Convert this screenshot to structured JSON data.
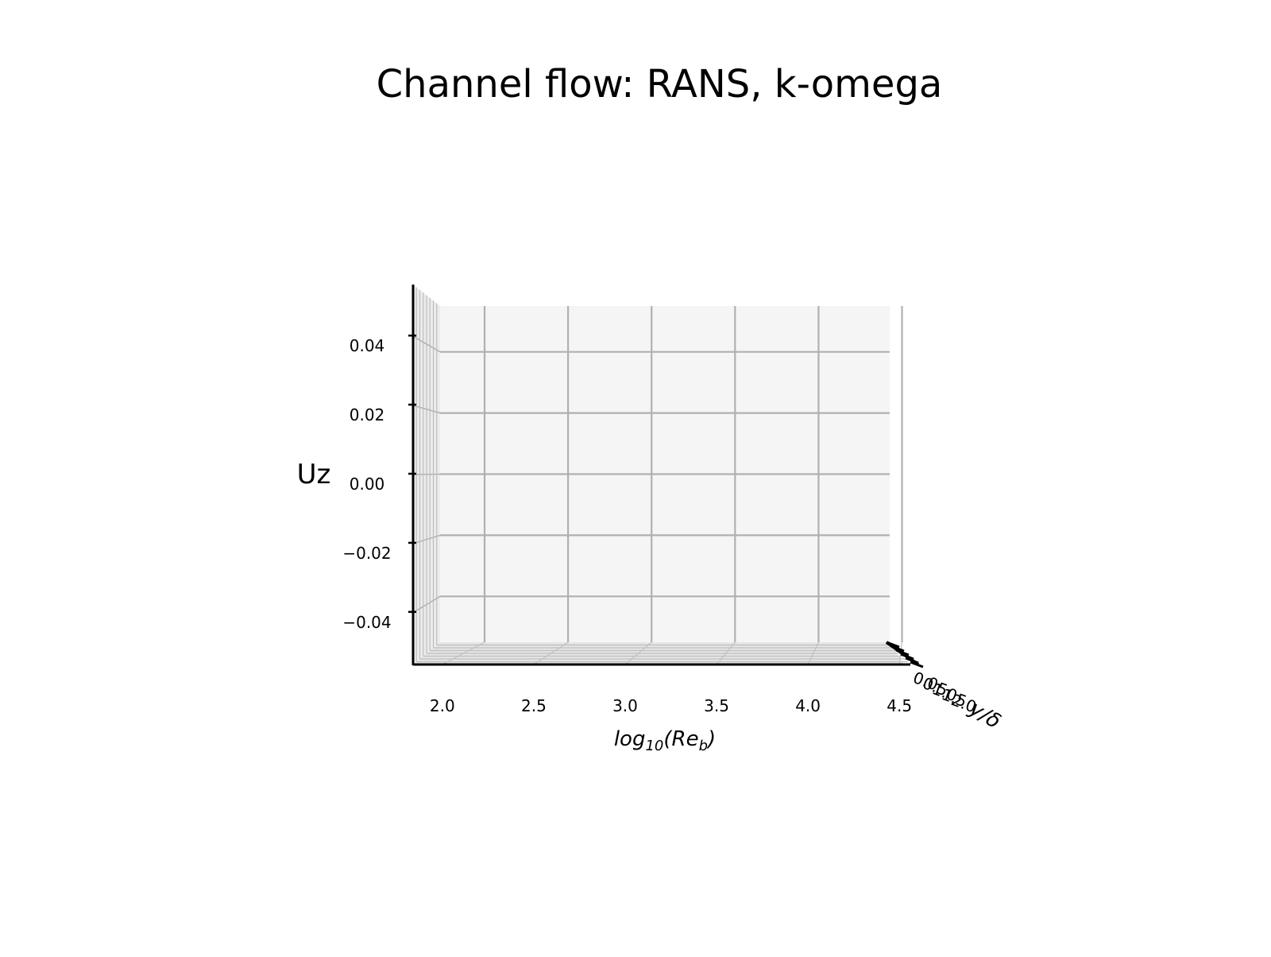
{
  "chart_data": {
    "type": "line",
    "projection": "3d",
    "title": "Channel flow: RANS, k-omega",
    "xlabel_parts": {
      "base": "log",
      "sub1": "10",
      "mid": "(Re",
      "sub2": "b",
      "end": ")"
    },
    "ylabel": "y/δ",
    "zlabel": "Uz",
    "x_ticks": [
      "2.0",
      "2.5",
      "3.0",
      "3.5",
      "4.0",
      "4.5"
    ],
    "x_tick_values": [
      2.0,
      2.5,
      3.0,
      3.5,
      4.0,
      4.5
    ],
    "xlim": [
      1.84,
      4.56
    ],
    "z_ticks": [
      "0.04",
      "0.02",
      "0.00",
      "−0.02",
      "−0.04"
    ],
    "z_tick_values": [
      0.04,
      0.02,
      0.0,
      -0.02,
      -0.04
    ],
    "zlim": [
      -0.055,
      0.055
    ],
    "y_ticks_visible": [
      "0.0",
      "0.5",
      "1.0",
      "1.5",
      "2.0"
    ],
    "grid": true,
    "pane_color": "#f5f5f5",
    "grid_color": "#b0b0b0",
    "series": []
  }
}
